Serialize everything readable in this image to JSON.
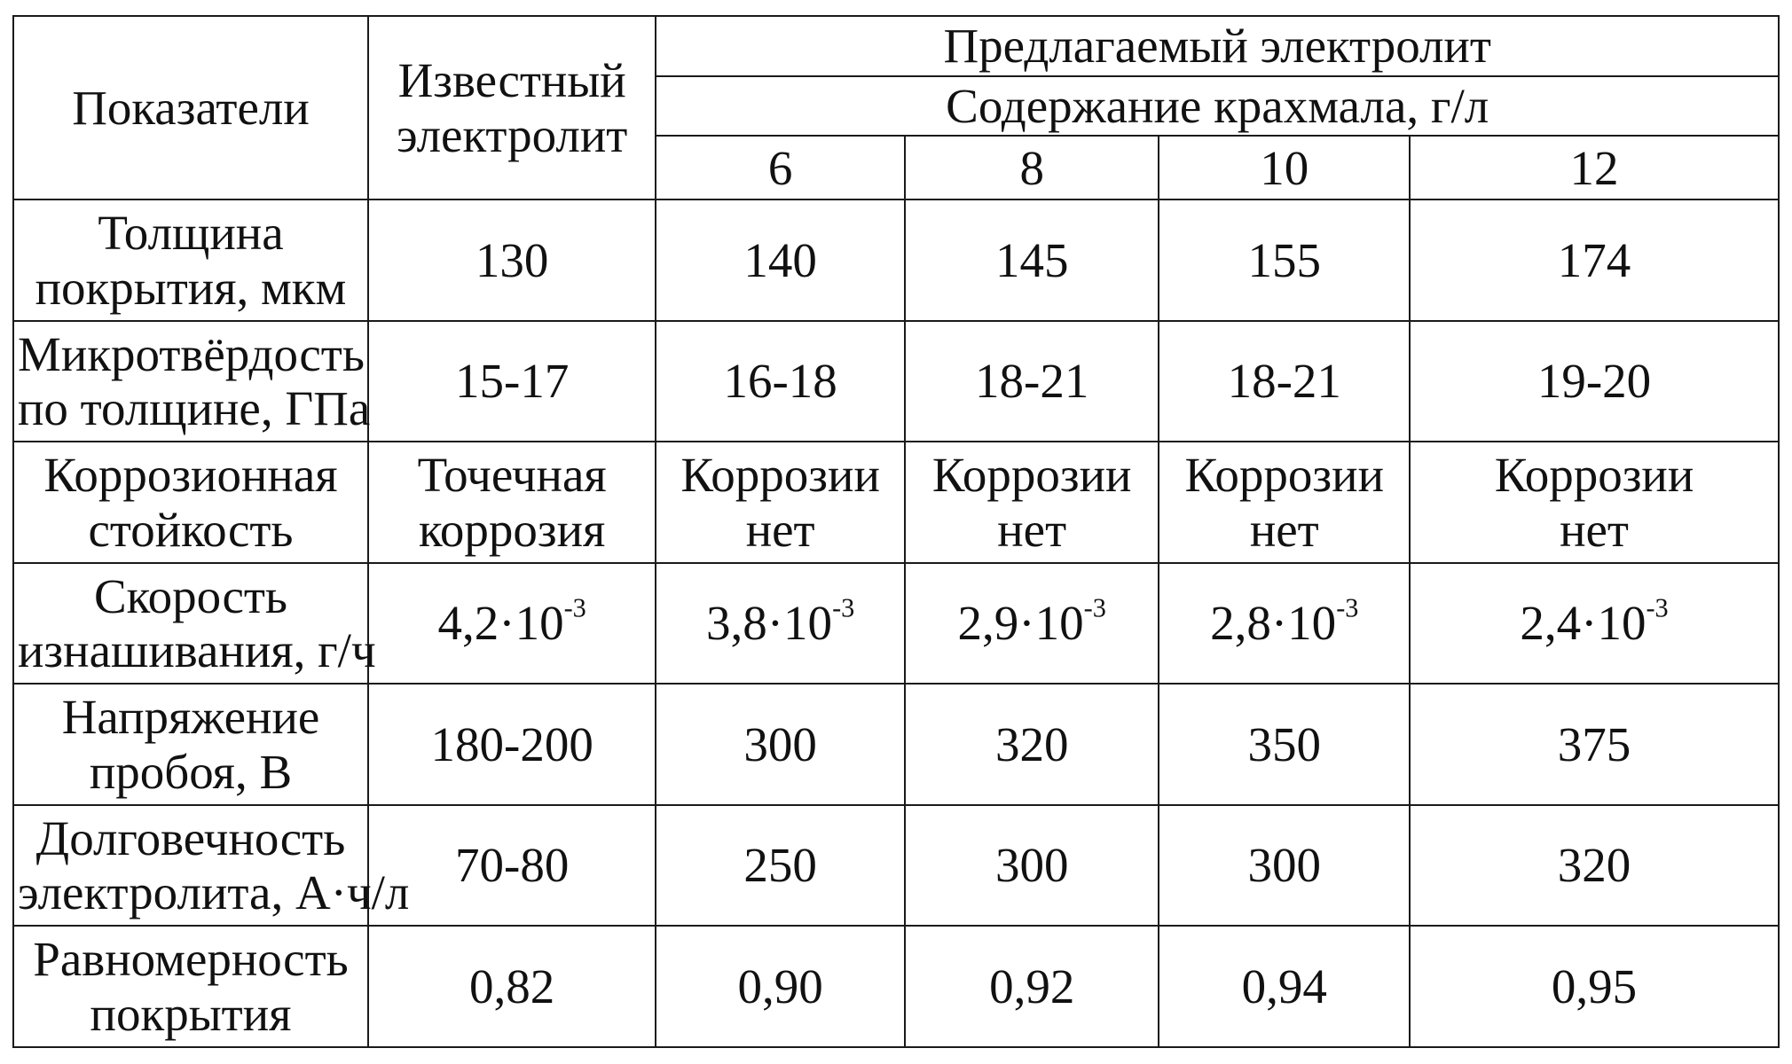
{
  "table": {
    "headers": {
      "indicators": "Показатели",
      "known_electrolyte": [
        "Известный",
        "электролит"
      ],
      "proposed_electrolyte": "Предлагаемый электролит",
      "starch_content": "Содержание крахмала, г/л",
      "concentrations": [
        "6",
        "8",
        "10",
        "12"
      ]
    },
    "rows": [
      {
        "label": [
          "Толщина",
          "покрытия, мкм"
        ],
        "values": [
          {
            "parts": [
              "130"
            ]
          },
          {
            "parts": [
              "140"
            ]
          },
          {
            "parts": [
              "145"
            ]
          },
          {
            "parts": [
              "155"
            ]
          },
          {
            "parts": [
              "174"
            ]
          }
        ]
      },
      {
        "label": [
          "Микротвёрдость",
          "по толщине, ГПа"
        ],
        "values": [
          {
            "parts": [
              "15-17"
            ]
          },
          {
            "parts": [
              "16-18"
            ]
          },
          {
            "parts": [
              "18-21"
            ]
          },
          {
            "parts": [
              "18-21"
            ]
          },
          {
            "parts": [
              "19-20"
            ]
          }
        ]
      },
      {
        "label": [
          "Коррозионная",
          "стойкость"
        ],
        "values": [
          {
            "parts": [
              "Точечная",
              "коррозия"
            ]
          },
          {
            "parts": [
              "Коррозии",
              "нет"
            ]
          },
          {
            "parts": [
              "Коррозии",
              "нет"
            ]
          },
          {
            "parts": [
              "Коррозии",
              "нет"
            ]
          },
          {
            "parts": [
              "Коррозии",
              "нет"
            ]
          }
        ]
      },
      {
        "label": [
          "Скорость",
          "изнашивания, г/ч"
        ],
        "values": [
          {
            "base": "4,2·10",
            "exp": "-3"
          },
          {
            "base": "3,8·10",
            "exp": "-3"
          },
          {
            "base": "2,9·10",
            "exp": "-3"
          },
          {
            "base": "2,8·10",
            "exp": "-3"
          },
          {
            "base": "2,4·10",
            "exp": "-3"
          }
        ]
      },
      {
        "label": [
          "Напряжение",
          "пробоя, В"
        ],
        "values": [
          {
            "parts": [
              "180-200"
            ]
          },
          {
            "parts": [
              "300"
            ]
          },
          {
            "parts": [
              "320"
            ]
          },
          {
            "parts": [
              "350"
            ]
          },
          {
            "parts": [
              "375"
            ]
          }
        ]
      },
      {
        "label": [
          "Долговечность",
          "электролита, А·ч/л"
        ],
        "values": [
          {
            "parts": [
              "70-80"
            ]
          },
          {
            "parts": [
              "250"
            ]
          },
          {
            "parts": [
              "300"
            ]
          },
          {
            "parts": [
              "300"
            ]
          },
          {
            "parts": [
              "320"
            ]
          }
        ]
      },
      {
        "label": [
          "Равномерность",
          "покрытия"
        ],
        "values": [
          {
            "parts": [
              "0,82"
            ]
          },
          {
            "parts": [
              "0,90"
            ]
          },
          {
            "parts": [
              "0,92"
            ]
          },
          {
            "parts": [
              "0,94"
            ]
          },
          {
            "parts": [
              "0,95"
            ]
          }
        ]
      }
    ]
  }
}
